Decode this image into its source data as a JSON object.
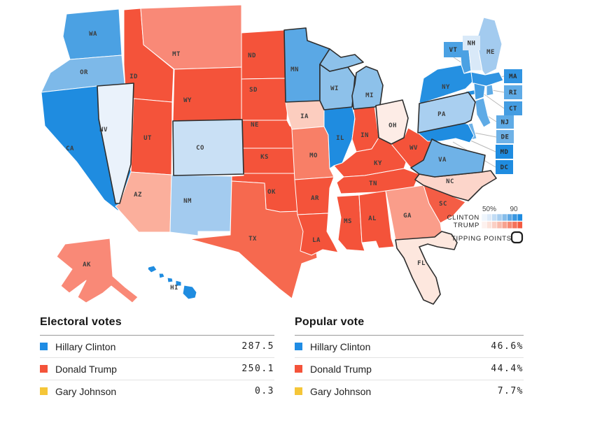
{
  "map": {
    "label_color": "#3d3d3d",
    "states": [
      {
        "id": "WA",
        "label": "WA",
        "fill": "#4ba1e3",
        "tipping": false
      },
      {
        "id": "OR",
        "label": "OR",
        "fill": "#7db9e9",
        "tipping": false
      },
      {
        "id": "CA",
        "label": "CA",
        "fill": "#1f8ce0",
        "tipping": false
      },
      {
        "id": "NV",
        "label": "NV",
        "fill": "#eaf2fb",
        "tipping": true
      },
      {
        "id": "ID",
        "label": "ID",
        "fill": "#f4533a",
        "tipping": false
      },
      {
        "id": "MT",
        "label": "MT",
        "fill": "#f98977",
        "tipping": false
      },
      {
        "id": "WY",
        "label": "WY",
        "fill": "#f4533a",
        "tipping": false
      },
      {
        "id": "UT",
        "label": "UT",
        "fill": "#f4533a",
        "tipping": false
      },
      {
        "id": "CO",
        "label": "CO",
        "fill": "#c9e0f5",
        "tipping": true
      },
      {
        "id": "AZ",
        "label": "AZ",
        "fill": "#fbaf9c",
        "tipping": false
      },
      {
        "id": "NM",
        "label": "NM",
        "fill": "#a3cbef",
        "tipping": false
      },
      {
        "id": "ND",
        "label": "ND",
        "fill": "#f4533a",
        "tipping": false
      },
      {
        "id": "SD",
        "label": "SD",
        "fill": "#f4533a",
        "tipping": false
      },
      {
        "id": "NE",
        "label": "NE",
        "fill": "#f4533a",
        "tipping": false
      },
      {
        "id": "KS",
        "label": "KS",
        "fill": "#f4533a",
        "tipping": false
      },
      {
        "id": "OK",
        "label": "OK",
        "fill": "#f4533a",
        "tipping": false
      },
      {
        "id": "TX",
        "label": "TX",
        "fill": "#f6694f",
        "tipping": false
      },
      {
        "id": "MN",
        "label": "MN",
        "fill": "#5aa8e5",
        "tipping": true
      },
      {
        "id": "IA",
        "label": "IA",
        "fill": "#fccdbf",
        "tipping": false
      },
      {
        "id": "MO",
        "label": "MO",
        "fill": "#f87f67",
        "tipping": false
      },
      {
        "id": "AR",
        "label": "AR",
        "fill": "#f4533a",
        "tipping": false
      },
      {
        "id": "LA",
        "label": "LA",
        "fill": "#f4533a",
        "tipping": false
      },
      {
        "id": "WI",
        "label": "WI",
        "fill": "#8dc1ea",
        "tipping": true
      },
      {
        "id": "IL",
        "label": "IL",
        "fill": "#1f8ce0",
        "tipping": false
      },
      {
        "id": "MS",
        "label": "MS",
        "fill": "#f4533a",
        "tipping": false
      },
      {
        "id": "MI",
        "label": "MI",
        "fill": "#8dc1ea",
        "tipping": true
      },
      {
        "id": "IN",
        "label": "IN",
        "fill": "#f4533a",
        "tipping": false
      },
      {
        "id": "OH",
        "label": "OH",
        "fill": "#fdece6",
        "tipping": true
      },
      {
        "id": "KY",
        "label": "KY",
        "fill": "#f4533a",
        "tipping": false
      },
      {
        "id": "TN",
        "label": "TN",
        "fill": "#f4533a",
        "tipping": false
      },
      {
        "id": "AL",
        "label": "AL",
        "fill": "#f4533a",
        "tipping": false
      },
      {
        "id": "GA",
        "label": "GA",
        "fill": "#fa9d8a",
        "tipping": false
      },
      {
        "id": "SC",
        "label": "SC",
        "fill": "#f45d45",
        "tipping": false
      },
      {
        "id": "NC",
        "label": "NC",
        "fill": "#fcd5ca",
        "tipping": true
      },
      {
        "id": "VA",
        "label": "VA",
        "fill": "#6fb2e7",
        "tipping": true
      },
      {
        "id": "WV",
        "label": "WV",
        "fill": "#f4533a",
        "tipping": false
      },
      {
        "id": "PA",
        "label": "PA",
        "fill": "#a9cff0",
        "tipping": true
      },
      {
        "id": "NY",
        "label": "NY",
        "fill": "#2590e1",
        "tipping": false
      },
      {
        "id": "VT",
        "label": "",
        "fill": "#4ba1e3",
        "tipping": false
      },
      {
        "id": "NH",
        "label": "",
        "fill": "#d9e9f8",
        "tipping": false
      },
      {
        "id": "ME",
        "label": "ME",
        "fill": "#a3cbef",
        "tipping": false
      },
      {
        "id": "MA",
        "label": "",
        "fill": "#3094e2",
        "tipping": false
      },
      {
        "id": "RI",
        "label": "",
        "fill": "#5fabe6",
        "tipping": false
      },
      {
        "id": "CT",
        "label": "",
        "fill": "#449de2",
        "tipping": false
      },
      {
        "id": "NJ",
        "label": "",
        "fill": "#5fabe6",
        "tipping": false
      },
      {
        "id": "DE",
        "label": "",
        "fill": "#6fb2e7",
        "tipping": false
      },
      {
        "id": "MD",
        "label": "",
        "fill": "#1f8ce0",
        "tipping": false
      },
      {
        "id": "FL",
        "label": "FL",
        "fill": "#fde7de",
        "tipping": true
      },
      {
        "id": "AK",
        "label": "AK",
        "fill": "#f98977",
        "tipping": false
      },
      {
        "id": "HI",
        "label": "HI",
        "fill": "#1f8ce0",
        "tipping": false
      }
    ],
    "callouts": [
      {
        "id": "VT",
        "label": "VT",
        "fill": "#4ba1e3"
      },
      {
        "id": "NH",
        "label": "NH",
        "fill": "#d9e9f8"
      },
      {
        "id": "MA",
        "label": "MA",
        "fill": "#3094e2"
      },
      {
        "id": "RI",
        "label": "RI",
        "fill": "#5fabe6"
      },
      {
        "id": "CT",
        "label": "CT",
        "fill": "#449de2"
      },
      {
        "id": "NJ",
        "label": "NJ",
        "fill": "#5fabe6"
      },
      {
        "id": "DE",
        "label": "DE",
        "fill": "#6fb2e7"
      },
      {
        "id": "MD",
        "label": "MD",
        "fill": "#1f8ce0"
      },
      {
        "id": "DC",
        "label": "DC",
        "fill": "#1f8ce0"
      }
    ],
    "legend": {
      "tick_low": "50%",
      "tick_high": "90",
      "rows": [
        {
          "label": "CLINTON",
          "scale": [
            "#eef5fc",
            "#ddeaf8",
            "#c2dcf4",
            "#a6cdef",
            "#85bce9",
            "#5fa8e4",
            "#3996e0",
            "#1d8be0"
          ]
        },
        {
          "label": "TRUMP",
          "scale": [
            "#fdf1ee",
            "#fce2da",
            "#fbcfc4",
            "#f9baab",
            "#f7a28f",
            "#f68a74",
            "#f4725a",
            "#f35b41"
          ]
        }
      ],
      "tipping_label": "TIPPING POINTS"
    }
  },
  "tables": [
    {
      "title": "Electoral votes",
      "rows": [
        {
          "name": "Hillary Clinton",
          "value": "287.5",
          "color": "#1f8ce4"
        },
        {
          "name": "Donald Trump",
          "value": "250.1",
          "color": "#f4533a"
        },
        {
          "name": "Gary Johnson",
          "value": "0.3",
          "color": "#f5c638"
        }
      ]
    },
    {
      "title": "Popular vote",
      "rows": [
        {
          "name": "Hillary Clinton",
          "value": "46.6%",
          "color": "#1f8ce4"
        },
        {
          "name": "Donald Trump",
          "value": "44.4%",
          "color": "#f4533a"
        },
        {
          "name": "Gary Johnson",
          "value": "7.7%",
          "color": "#f5c638"
        }
      ]
    }
  ],
  "chart_data": [
    {
      "type": "table",
      "title": "Electoral votes",
      "categories": [
        "Hillary Clinton",
        "Donald Trump",
        "Gary Johnson"
      ],
      "values": [
        287.5,
        250.1,
        0.3
      ]
    },
    {
      "type": "table",
      "title": "Popular vote",
      "categories": [
        "Hillary Clinton",
        "Donald Trump",
        "Gary Johnson"
      ],
      "values": [
        46.6,
        44.4,
        7.7
      ],
      "unit": "%"
    },
    {
      "type": "heatmap",
      "subtype": "us-choropleth-win-probability",
      "legend": {
        "scale_ticks": [
          "50%",
          "90"
        ],
        "rows": [
          "CLINTON",
          "TRUMP"
        ],
        "extra": "TIPPING POINTS"
      },
      "clinton_states": [
        "WA",
        "OR",
        "CA",
        "NV",
        "CO",
        "NM",
        "MN",
        "WI",
        "MI",
        "IL",
        "VA",
        "PA",
        "NY",
        "ME",
        "NH",
        "VT",
        "MA",
        "RI",
        "CT",
        "NJ",
        "DE",
        "MD",
        "DC",
        "HI"
      ],
      "trump_states": [
        "ID",
        "MT",
        "WY",
        "UT",
        "AZ",
        "ND",
        "SD",
        "NE",
        "KS",
        "OK",
        "TX",
        "IA",
        "MO",
        "AR",
        "LA",
        "MS",
        "AL",
        "TN",
        "KY",
        "WV",
        "IN",
        "OH",
        "GA",
        "SC",
        "NC",
        "FL",
        "AK"
      ],
      "tipping_points": [
        "NV",
        "CO",
        "MN",
        "WI",
        "MI",
        "OH",
        "PA",
        "VA",
        "NC",
        "FL"
      ]
    }
  ]
}
